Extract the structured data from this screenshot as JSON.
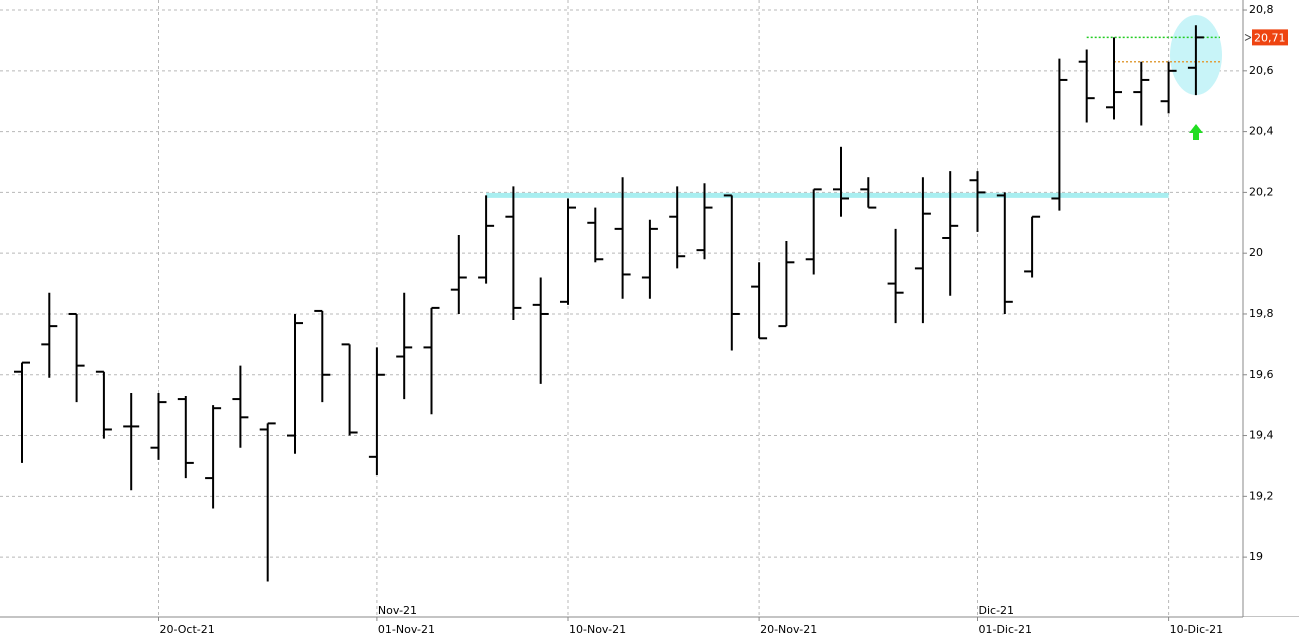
{
  "chart_data": {
    "type": "ohlc",
    "categories": [
      null,
      null,
      null,
      null,
      null,
      "20-Oct-21",
      null,
      null,
      null,
      null,
      null,
      null,
      null,
      "01-Nov-21",
      null,
      null,
      null,
      null,
      null,
      null,
      "10-Nov-21",
      null,
      null,
      null,
      null,
      null,
      null,
      "20-Nov-21",
      null,
      null,
      null,
      null,
      null,
      null,
      null,
      "01-Dic-21",
      null,
      null,
      null,
      null,
      null,
      null,
      "10-Dic-21",
      null
    ],
    "month_categories": [
      null,
      null,
      null,
      null,
      null,
      null,
      null,
      null,
      null,
      null,
      null,
      null,
      null,
      "Nov-21",
      null,
      null,
      null,
      null,
      null,
      null,
      null,
      null,
      null,
      null,
      null,
      null,
      null,
      null,
      null,
      null,
      null,
      null,
      null,
      null,
      null,
      "Dic-21",
      null,
      null,
      null,
      null,
      null,
      null,
      null,
      null
    ],
    "series": [
      {
        "color": "#000000",
        "open": [
          19.61,
          19.7,
          19.8,
          19.61,
          19.43,
          19.36,
          19.52,
          19.26,
          19.52,
          19.42,
          19.4,
          19.81,
          19.7,
          19.33,
          19.66,
          19.69,
          19.88,
          19.92,
          20.12,
          19.83,
          19.84,
          20.1,
          20.08,
          19.92,
          20.12,
          20.01,
          20.19,
          19.89,
          19.76,
          19.98,
          20.21,
          20.21,
          19.9,
          19.95,
          20.05,
          20.24,
          20.19,
          19.94,
          20.18,
          20.63,
          20.48,
          20.53,
          20.5,
          20.61
        ],
        "high": [
          19.64,
          19.87,
          19.8,
          19.61,
          19.54,
          19.54,
          19.53,
          19.5,
          19.63,
          19.44,
          19.8,
          19.81,
          19.7,
          19.69,
          19.87,
          19.82,
          20.06,
          20.19,
          20.22,
          19.92,
          20.18,
          20.15,
          20.25,
          20.11,
          20.22,
          20.23,
          20.19,
          19.97,
          20.04,
          20.21,
          20.35,
          20.25,
          20.08,
          20.25,
          20.27,
          20.27,
          20.2,
          20.12,
          20.64,
          20.67,
          20.71,
          20.63,
          20.63,
          20.75
        ],
        "low": [
          19.31,
          19.59,
          19.51,
          19.39,
          19.22,
          19.32,
          19.26,
          19.16,
          19.36,
          18.92,
          19.34,
          19.51,
          19.4,
          19.27,
          19.52,
          19.47,
          19.8,
          19.9,
          19.78,
          19.57,
          19.83,
          19.97,
          19.85,
          19.85,
          19.95,
          19.98,
          19.68,
          19.72,
          19.76,
          19.93,
          20.12,
          20.15,
          19.77,
          19.77,
          19.86,
          20.07,
          19.8,
          19.92,
          20.14,
          20.43,
          20.44,
          20.42,
          20.46,
          20.52
        ],
        "close": [
          19.64,
          19.76,
          19.63,
          19.42,
          19.43,
          19.51,
          19.31,
          19.49,
          19.46,
          19.44,
          19.77,
          19.6,
          19.41,
          19.6,
          19.69,
          19.82,
          19.92,
          20.09,
          19.82,
          19.8,
          20.15,
          19.98,
          19.93,
          20.08,
          19.99,
          20.15,
          19.8,
          19.72,
          19.97,
          20.21,
          20.18,
          20.15,
          19.87,
          20.13,
          20.09,
          20.2,
          19.84,
          20.12,
          20.57,
          20.51,
          20.53,
          20.57,
          20.6,
          20.71
        ]
      }
    ],
    "levels": [
      {
        "value": 20.19,
        "color": "#a8eef0"
      },
      {
        "value": 20.71,
        "color": "#22cc22"
      },
      {
        "value": 20.63,
        "color": "#e0a040"
      }
    ],
    "last_price": {
      "value": 20.71,
      "label": "20,71",
      "color": "#ee4411"
    },
    "ylim": [
      18.803,
      20.833
    ],
    "yticks": [
      {
        "value": 19,
        "label": "19"
      },
      {
        "value": 19.2,
        "label": "19,2"
      },
      {
        "value": 19.4,
        "label": "19,4"
      },
      {
        "value": 19.6,
        "label": "19,6"
      },
      {
        "value": 19.8,
        "label": "19,8"
      },
      {
        "value": 20,
        "label": "20"
      },
      {
        "value": 20.2,
        "label": "20,2"
      },
      {
        "value": 20.4,
        "label": "20,4"
      },
      {
        "value": 20.6,
        "label": "20,6"
      },
      {
        "value": 20.8,
        "label": "20,8"
      }
    ],
    "grid": true
  }
}
